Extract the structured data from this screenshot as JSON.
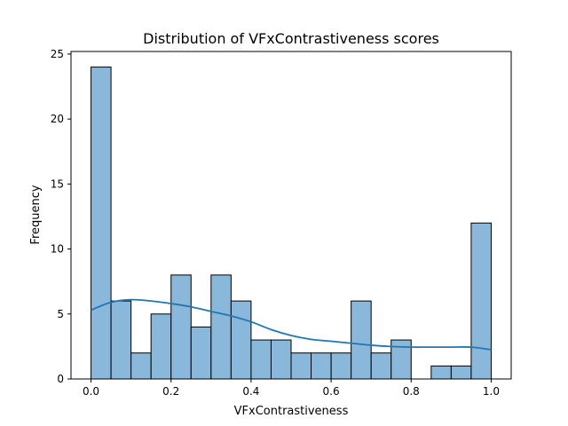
{
  "chart_data": {
    "type": "bar",
    "title": "Distribution of VFxContrastiveness scores",
    "xlabel": "VFxContrastiveness",
    "ylabel": "Frequency",
    "xlim": [
      -0.05,
      1.05
    ],
    "ylim": [
      0,
      25.2
    ],
    "xticks": [
      0.0,
      0.2,
      0.4,
      0.6,
      0.8,
      1.0
    ],
    "xtick_labels": [
      "0.0",
      "0.2",
      "0.4",
      "0.6",
      "0.8",
      "1.0"
    ],
    "yticks": [
      0,
      5,
      10,
      15,
      20,
      25
    ],
    "ytick_labels": [
      "0",
      "5",
      "10",
      "15",
      "20",
      "25"
    ],
    "bin_edges": [
      0.0,
      0.05,
      0.1,
      0.15,
      0.2,
      0.25,
      0.3,
      0.35,
      0.4,
      0.45,
      0.5,
      0.55,
      0.6,
      0.65,
      0.7,
      0.75,
      0.8,
      0.85,
      0.9,
      0.95,
      1.0
    ],
    "values": [
      24,
      6,
      2,
      5,
      8,
      4,
      8,
      6,
      3,
      3,
      2,
      2,
      2,
      6,
      2,
      3,
      0,
      1,
      1,
      12
    ],
    "bar_color": "#8ab8db",
    "kde_color": "#1f77b4",
    "kde": {
      "x": [
        0.0,
        0.05,
        0.1,
        0.15,
        0.2,
        0.25,
        0.3,
        0.35,
        0.4,
        0.45,
        0.5,
        0.55,
        0.6,
        0.65,
        0.7,
        0.75,
        0.8,
        0.85,
        0.9,
        0.95,
        1.0
      ],
      "y": [
        5.3,
        5.9,
        6.1,
        6.0,
        5.8,
        5.55,
        5.2,
        4.85,
        4.4,
        3.8,
        3.35,
        3.05,
        2.9,
        2.75,
        2.6,
        2.5,
        2.45,
        2.45,
        2.45,
        2.45,
        2.25
      ]
    },
    "grid": false,
    "legend": "none"
  }
}
